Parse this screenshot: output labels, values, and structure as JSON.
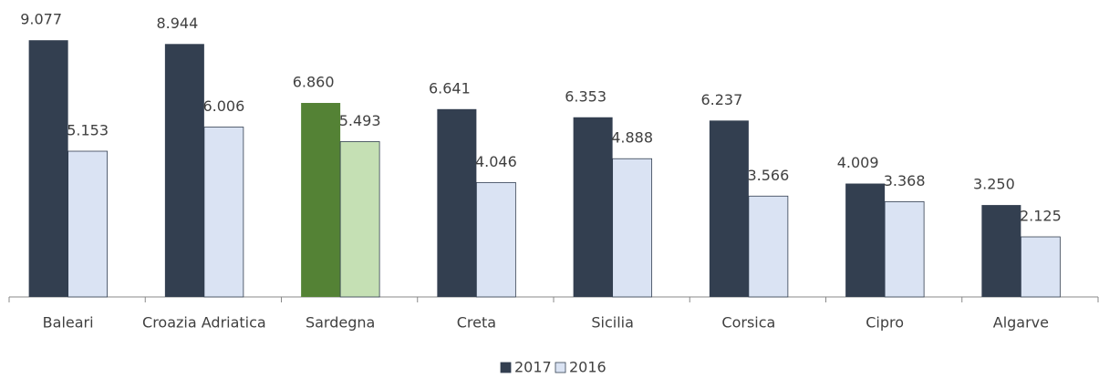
{
  "chart_data": {
    "type": "bar",
    "categories": [
      "Baleari",
      "Croazia Adriatica",
      "Sardegna",
      "Creta",
      "Sicilia",
      "Corsica",
      "Cipro",
      "Algarve"
    ],
    "series": [
      {
        "name": "2017",
        "color": "#333f50",
        "colors": [
          "#333f50",
          "#333f50",
          "#548235",
          "#333f50",
          "#333f50",
          "#333f50",
          "#333f50",
          "#333f50"
        ],
        "values": [
          9.077,
          8.944,
          6.86,
          6.641,
          6.353,
          6.237,
          4.009,
          3.25
        ],
        "value_labels": [
          "9.077",
          "8.944",
          "6.860",
          "6.641",
          "6.353",
          "6.237",
          "4.009",
          "3.250"
        ]
      },
      {
        "name": "2016",
        "color": "#dae3f3",
        "colors": [
          "#dae3f3",
          "#dae3f3",
          "#c5e0b4",
          "#dae3f3",
          "#dae3f3",
          "#dae3f3",
          "#dae3f3",
          "#dae3f3"
        ],
        "values": [
          5.153,
          6.006,
          5.493,
          4.046,
          4.888,
          3.566,
          3.368,
          2.125
        ],
        "value_labels": [
          "5.153",
          "6.006",
          "5.493",
          "4.046",
          "4.888",
          "3.566",
          "3.368",
          "2.125"
        ]
      }
    ],
    "ylim": [
      0,
      10.5
    ],
    "legend": "bottom"
  }
}
